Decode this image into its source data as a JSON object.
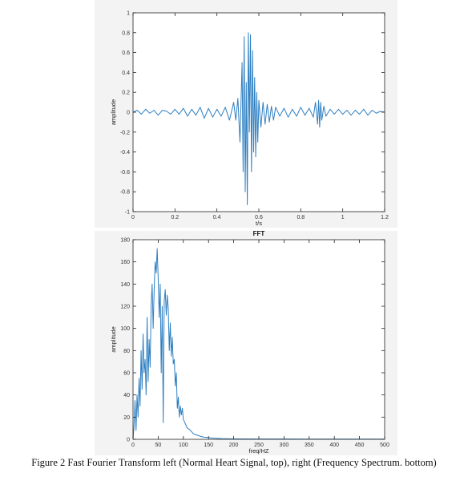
{
  "header_fragment": "",
  "caption": "Figure 2 Fast Fourier Transform left (Normal Heart Signal, top), right (Frequency Spectrum. bottom)",
  "colors": {
    "line": "#2f7fc1",
    "axis": "#222222",
    "panel": "#f3f3f3",
    "plot_bg": "#ffffff"
  },
  "chart_data": [
    {
      "type": "line",
      "title": "",
      "xlabel": "t/s",
      "ylabel": "amplitude",
      "xlim": [
        0,
        1.2
      ],
      "ylim": [
        -1,
        1
      ],
      "xticks": [
        0,
        0.2,
        0.4,
        0.6,
        0.8,
        1,
        1.2
      ],
      "yticks": [
        -1,
        -0.8,
        -0.6,
        -0.4,
        -0.2,
        0,
        0.2,
        0.4,
        0.6,
        0.8,
        1
      ],
      "grid": false,
      "series": [
        {
          "x": [
            0,
            0.02,
            0.04,
            0.06,
            0.08,
            0.1,
            0.12,
            0.14,
            0.16,
            0.18,
            0.2,
            0.22,
            0.24,
            0.26,
            0.28,
            0.3,
            0.32,
            0.34,
            0.36,
            0.38,
            0.4,
            0.42,
            0.44,
            0.46,
            0.48,
            0.49,
            0.5,
            0.51,
            0.52,
            0.525,
            0.53,
            0.535,
            0.54,
            0.545,
            0.55,
            0.555,
            0.56,
            0.565,
            0.57,
            0.575,
            0.58,
            0.585,
            0.59,
            0.595,
            0.6,
            0.61,
            0.62,
            0.63,
            0.64,
            0.65,
            0.66,
            0.67,
            0.68,
            0.7,
            0.72,
            0.74,
            0.76,
            0.78,
            0.8,
            0.82,
            0.84,
            0.86,
            0.87,
            0.88,
            0.885,
            0.89,
            0.895,
            0.9,
            0.91,
            0.92,
            0.94,
            0.96,
            0.98,
            1,
            1.02,
            1.04,
            1.06,
            1.08,
            1.1,
            1.12,
            1.14,
            1.16,
            1.18,
            1.2
          ],
          "y": [
            0,
            0.02,
            -0.02,
            0.03,
            -0.01,
            0.02,
            -0.03,
            0.02,
            0.01,
            -0.02,
            0.03,
            -0.02,
            0.04,
            -0.04,
            0.03,
            -0.03,
            0.05,
            -0.06,
            0.04,
            -0.05,
            0.03,
            -0.04,
            0.05,
            -0.08,
            0.1,
            -0.08,
            0.14,
            -0.3,
            0.5,
            -0.6,
            0.76,
            -0.8,
            0.3,
            -0.93,
            0.8,
            -0.2,
            0.78,
            -0.6,
            0.62,
            -0.4,
            0.35,
            -0.45,
            0.2,
            -0.3,
            0.12,
            -0.15,
            0.1,
            -0.12,
            0.08,
            -0.1,
            0.06,
            -0.08,
            0.05,
            -0.04,
            0.04,
            -0.05,
            0.03,
            -0.04,
            0.05,
            -0.03,
            0.04,
            -0.05,
            0.1,
            -0.12,
            0.12,
            -0.15,
            0.1,
            -0.08,
            0.06,
            -0.04,
            0.03,
            -0.02,
            0.03,
            -0.02,
            0.02,
            -0.03,
            0.02,
            -0.02,
            0.03,
            -0.03,
            0.02,
            -0.01,
            0.01,
            0
          ]
        }
      ]
    },
    {
      "type": "line",
      "title": "FFT",
      "xlabel": "freq/HZ",
      "ylabel": "amplitude",
      "xlim": [
        0,
        500
      ],
      "ylim": [
        0,
        180
      ],
      "xticks": [
        0,
        50,
        100,
        150,
        200,
        250,
        300,
        350,
        400,
        450,
        500
      ],
      "yticks": [
        0,
        20,
        40,
        60,
        80,
        100,
        120,
        140,
        160,
        180
      ],
      "grid": false,
      "series": [
        {
          "x": [
            0,
            2,
            4,
            6,
            8,
            10,
            12,
            14,
            16,
            18,
            20,
            22,
            24,
            26,
            28,
            30,
            32,
            34,
            36,
            38,
            40,
            42,
            44,
            46,
            48,
            50,
            52,
            54,
            56,
            58,
            60,
            62,
            64,
            66,
            68,
            70,
            72,
            74,
            76,
            78,
            80,
            82,
            84,
            86,
            88,
            90,
            92,
            94,
            96,
            98,
            100,
            104,
            108,
            112,
            116,
            120,
            126,
            132,
            140,
            150,
            160,
            175,
            200,
            250,
            300,
            350,
            400,
            450,
            500
          ],
          "y": [
            0,
            12,
            35,
            8,
            40,
            20,
            55,
            30,
            80,
            45,
            95,
            60,
            72,
            40,
            110,
            52,
            90,
            65,
            120,
            140,
            100,
            135,
            160,
            150,
            172,
            145,
            110,
            140,
            60,
            120,
            15,
            125,
            135,
            112,
            130,
            118,
            80,
            105,
            75,
            92,
            68,
            72,
            48,
            60,
            28,
            38,
            20,
            30,
            22,
            28,
            18,
            14,
            10,
            9,
            7,
            5,
            4,
            3,
            2,
            1.5,
            1,
            0.6,
            0.4,
            0.3,
            0.3,
            0.2,
            0.2,
            0.2,
            0.2
          ]
        }
      ]
    }
  ]
}
